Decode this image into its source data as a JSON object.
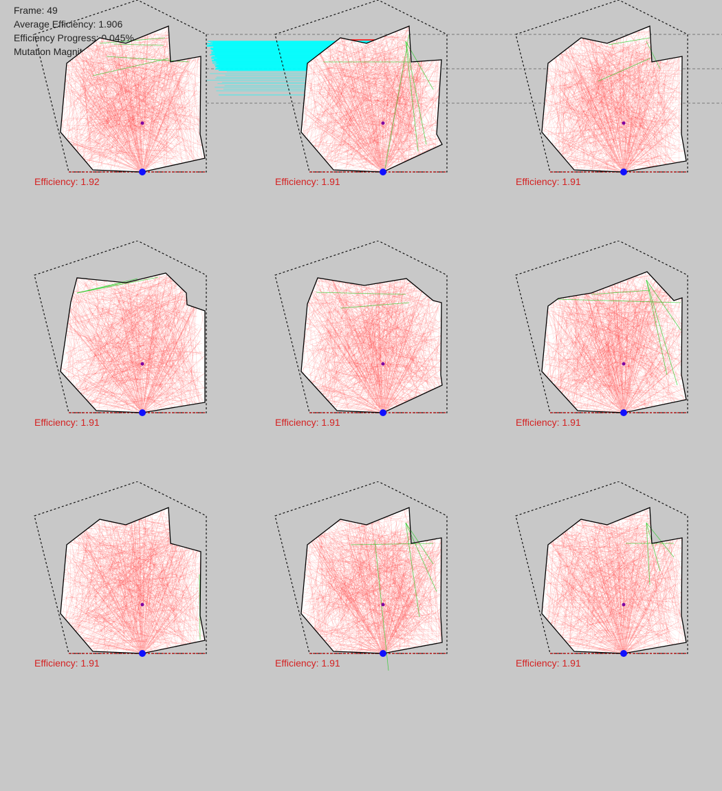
{
  "stats": {
    "frame_label": "Frame: 49",
    "avg_efficiency_label": "Average Efficiency: 1.906",
    "progress_label": "Efficiency Progress: 0.045%",
    "mutation_label": "Mutation Magnitude: 0.1"
  },
  "history_chart": {
    "generations": 49,
    "series_color": "#00ffff",
    "best_color": "#ff0000"
  },
  "colors": {
    "background": "#c8c8c8",
    "ray": "#ff3030",
    "bounce_ray": "#22cc22",
    "shape_fill": "#ffffff",
    "boundary": "#000000",
    "source": "#1010ff",
    "center": "#8000a0",
    "label": "#d42020"
  },
  "cells": [
    {
      "efficiency_label": "Efficiency: 1.92",
      "efficiency": 1.92
    },
    {
      "efficiency_label": "Efficiency: 1.91",
      "efficiency": 1.91
    },
    {
      "efficiency_label": "Efficiency: 1.91",
      "efficiency": 1.91
    },
    {
      "efficiency_label": "Efficiency: 1.91",
      "efficiency": 1.91
    },
    {
      "efficiency_label": "Efficiency: 1.91",
      "efficiency": 1.91
    },
    {
      "efficiency_label": "Efficiency: 1.91",
      "efficiency": 1.91
    },
    {
      "efficiency_label": "Efficiency: 1.91",
      "efficiency": 1.91
    },
    {
      "efficiency_label": "Efficiency: 1.91",
      "efficiency": 1.91
    },
    {
      "efficiency_label": "Efficiency: 1.91",
      "efficiency": 1.91
    }
  ]
}
